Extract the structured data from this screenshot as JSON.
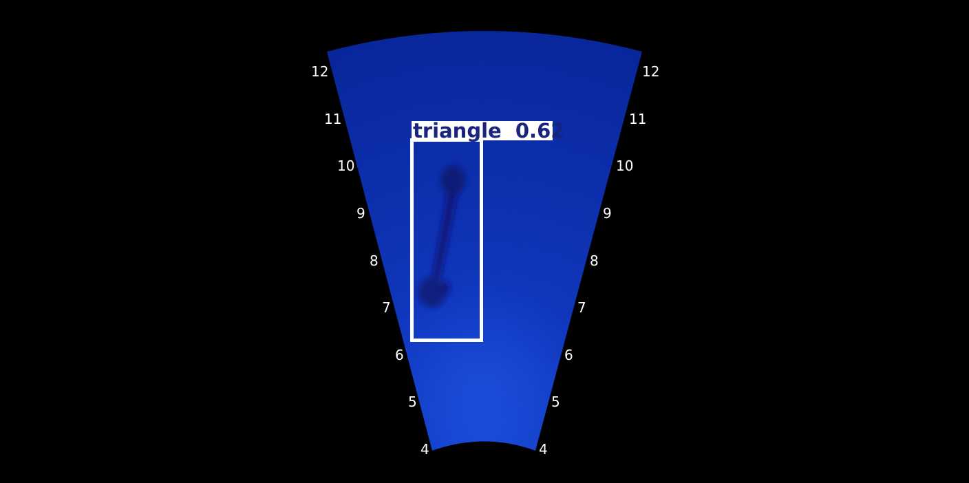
{
  "sonar": {
    "background_color": "#000000",
    "fan_color_dark": "#0a1a8a",
    "fan_color_mid": "#1230c8",
    "fan_color_bright": "#1e4ae6",
    "range_labels_left": [
      "12",
      "11",
      "10",
      "9",
      "8",
      "7",
      "6",
      "5",
      "4"
    ],
    "range_labels_right": [
      "12",
      "11",
      "10",
      "9",
      "8",
      "7",
      "6",
      "5",
      "4"
    ],
    "range_label_color": "#ffffff"
  },
  "detection": {
    "label": "triangle  0.62",
    "box_color": "#ffffff",
    "label_bg_color": "#ffffff",
    "label_text_color": "#1a237e"
  }
}
